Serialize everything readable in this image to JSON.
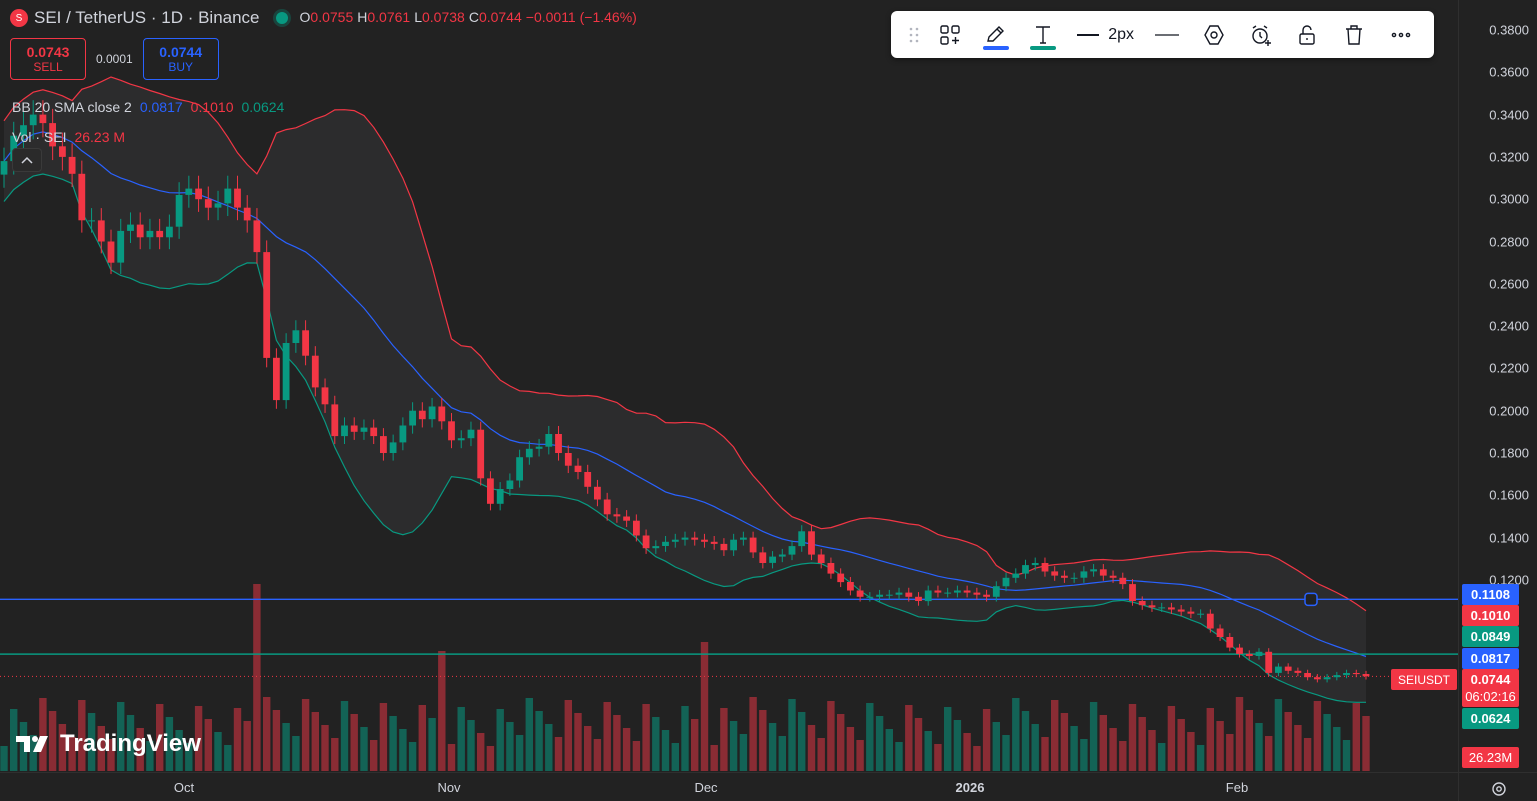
{
  "header": {
    "title": "SEI / TetherUS · 1D · Binance",
    "icon_letter": "S",
    "ohlc": [
      {
        "k": "O",
        "v": "0.0755"
      },
      {
        "k": "H",
        "v": "0.0761"
      },
      {
        "k": "L",
        "v": "0.0738"
      },
      {
        "k": "C",
        "v": "0.0744"
      },
      {
        "k": "",
        "v": "−0.0011 (−1.46%)"
      }
    ]
  },
  "trade": {
    "sell_price": "0.0743",
    "sell_label": "SELL",
    "spread": "0.0001",
    "buy_price": "0.0744",
    "buy_label": "BUY"
  },
  "indicators": {
    "bb_name": "BB 20 SMA close 2",
    "bb_basis": "0.0817",
    "bb_upper": "0.1010",
    "bb_lower": "0.0624",
    "vol_name": "Vol · SEI",
    "vol_value": "26.23 M"
  },
  "toolbar": {
    "width_label": "2px",
    "icons": [
      "drag-handle-icon",
      "add-tool-icon",
      "pencil-icon",
      "text-icon",
      "line-width-icon",
      "line-style-icon",
      "settings-hex-icon",
      "alert-clock-icon",
      "lock-icon",
      "trash-icon",
      "more-icon"
    ]
  },
  "price_axis": [
    "0.3800",
    "0.3600",
    "0.3400",
    "0.3200",
    "0.3000",
    "0.2800",
    "0.2600",
    "0.2400",
    "0.2200",
    "0.2000",
    "0.1800",
    "0.1600",
    "0.1400",
    "0.1200"
  ],
  "badges": {
    "hline": "0.1108",
    "bb_upper": "0.1010",
    "bb_green": "0.0849",
    "bb_basis": "0.0817",
    "last_price": "0.0744",
    "countdown": "06:02:16",
    "bb_lower": "0.0624",
    "volume": "26.23M",
    "symbol": "SEIUSDT"
  },
  "time_axis": [
    {
      "label": "Oct",
      "bold": false
    },
    {
      "label": "Nov",
      "bold": false
    },
    {
      "label": "Dec",
      "bold": false
    },
    {
      "label": "2026",
      "bold": true
    },
    {
      "label": "Feb",
      "bold": false
    }
  ],
  "brand": "TradingView",
  "colors": {
    "up": "#089981",
    "down": "#f23645",
    "basis": "#2962ff",
    "bg": "#222222"
  },
  "chart_data": {
    "type": "candlestick",
    "title": "SEI / TetherUS · 1D · Binance",
    "ylim": [
      0.062,
      0.385
    ],
    "hlines": [
      0.1108,
      0.0849
    ],
    "closes": [
      0.318,
      0.33,
      0.335,
      0.34,
      0.336,
      0.325,
      0.32,
      0.312,
      0.29,
      0.29,
      0.28,
      0.27,
      0.285,
      0.288,
      0.282,
      0.285,
      0.282,
      0.287,
      0.302,
      0.305,
      0.3,
      0.296,
      0.298,
      0.305,
      0.296,
      0.29,
      0.275,
      0.225,
      0.205,
      0.232,
      0.238,
      0.226,
      0.211,
      0.203,
      0.188,
      0.193,
      0.19,
      0.192,
      0.188,
      0.18,
      0.185,
      0.193,
      0.2,
      0.196,
      0.202,
      0.195,
      0.186,
      0.187,
      0.191,
      0.168,
      0.156,
      0.163,
      0.167,
      0.178,
      0.182,
      0.183,
      0.189,
      0.18,
      0.174,
      0.171,
      0.164,
      0.158,
      0.151,
      0.15,
      0.148,
      0.141,
      0.135,
      0.136,
      0.138,
      0.139,
      0.14,
      0.139,
      0.138,
      0.137,
      0.134,
      0.139,
      0.14,
      0.133,
      0.128,
      0.131,
      0.132,
      0.136,
      0.143,
      0.132,
      0.128,
      0.123,
      0.119,
      0.115,
      0.112,
      0.112,
      0.113,
      0.113,
      0.114,
      0.112,
      0.11,
      0.115,
      0.114,
      0.114,
      0.115,
      0.114,
      0.113,
      0.112,
      0.117,
      0.121,
      0.123,
      0.127,
      0.128,
      0.124,
      0.122,
      0.121,
      0.121,
      0.124,
      0.125,
      0.122,
      0.121,
      0.118,
      0.11,
      0.108,
      0.107,
      0.107,
      0.106,
      0.105,
      0.104,
      0.104,
      0.097,
      0.093,
      0.088,
      0.085,
      0.084,
      0.086,
      0.076,
      0.079,
      0.077,
      0.076,
      0.074,
      0.073,
      0.074,
      0.075,
      0.076,
      0.0755,
      0.0744
    ]
  }
}
